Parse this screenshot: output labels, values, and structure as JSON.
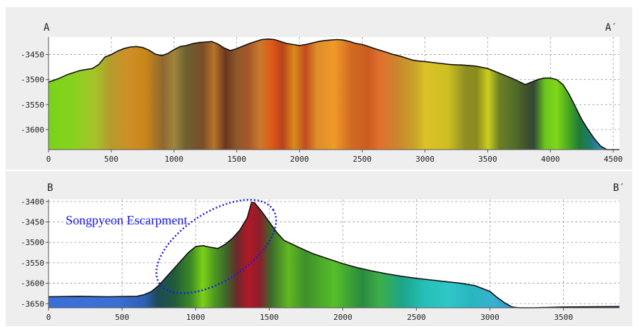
{
  "chart_data": [
    {
      "type": "area",
      "start_label": "A",
      "end_label": "A′",
      "xlim": [
        0,
        4550
      ],
      "ylim": [
        -3640,
        -3415
      ],
      "x_ticks": [
        0,
        500,
        1000,
        1500,
        2000,
        2500,
        3000,
        3500,
        4000,
        4500
      ],
      "y_ticks": [
        -3450,
        -3500,
        -3550,
        -3600
      ],
      "x": [
        0,
        80,
        150,
        250,
        300,
        350,
        400,
        450,
        500,
        550,
        600,
        650,
        700,
        750,
        800,
        850,
        900,
        950,
        1000,
        1050,
        1100,
        1150,
        1200,
        1250,
        1300,
        1350,
        1400,
        1450,
        1500,
        1550,
        1600,
        1650,
        1700,
        1750,
        1800,
        1850,
        1900,
        1950,
        2000,
        2050,
        2100,
        2150,
        2200,
        2250,
        2300,
        2350,
        2400,
        2450,
        2500,
        2550,
        2600,
        2650,
        2700,
        2750,
        2800,
        2850,
        2900,
        2950,
        3000,
        3100,
        3200,
        3300,
        3400,
        3500,
        3600,
        3700,
        3800,
        3900,
        3950,
        4000,
        4050,
        4100,
        4150,
        4200,
        4250,
        4300,
        4350,
        4400,
        4450,
        4500,
        4550
      ],
      "y": [
        -3505,
        -3498,
        -3490,
        -3482,
        -3480,
        -3478,
        -3470,
        -3455,
        -3450,
        -3443,
        -3438,
        -3435,
        -3434,
        -3436,
        -3441,
        -3449,
        -3452,
        -3448,
        -3440,
        -3434,
        -3432,
        -3428,
        -3426,
        -3425,
        -3424,
        -3429,
        -3437,
        -3442,
        -3438,
        -3433,
        -3428,
        -3424,
        -3420,
        -3419,
        -3420,
        -3424,
        -3428,
        -3430,
        -3432,
        -3430,
        -3427,
        -3424,
        -3422,
        -3421,
        -3420,
        -3421,
        -3424,
        -3428,
        -3430,
        -3434,
        -3438,
        -3442,
        -3446,
        -3450,
        -3453,
        -3457,
        -3461,
        -3463,
        -3464,
        -3467,
        -3470,
        -3471,
        -3473,
        -3478,
        -3488,
        -3498,
        -3510,
        -3500,
        -3497,
        -3497,
        -3500,
        -3510,
        -3530,
        -3555,
        -3580,
        -3600,
        -3618,
        -3633,
        -3645,
        -3655,
        -3660
      ]
    },
    {
      "type": "area",
      "start_label": "B",
      "end_label": "B′",
      "xlim": [
        0,
        3880
      ],
      "ylim": [
        -3660,
        -3395
      ],
      "x_ticks": [
        0,
        500,
        1000,
        1500,
        2000,
        2500,
        3000,
        3500
      ],
      "y_ticks": [
        -3400,
        -3450,
        -3500,
        -3550,
        -3600,
        -3650
      ],
      "x": [
        0,
        200,
        400,
        600,
        650,
        700,
        750,
        800,
        850,
        900,
        950,
        1000,
        1050,
        1100,
        1150,
        1200,
        1250,
        1300,
        1350,
        1380,
        1400,
        1450,
        1500,
        1550,
        1600,
        1700,
        1800,
        1900,
        2000,
        2100,
        2200,
        2300,
        2400,
        2500,
        2600,
        2700,
        2800,
        2900,
        3000,
        3050,
        3100,
        3150,
        3200,
        3300,
        3500,
        3880
      ],
      "y": [
        -3633,
        -3632,
        -3633,
        -3632,
        -3628,
        -3620,
        -3605,
        -3585,
        -3565,
        -3545,
        -3525,
        -3510,
        -3508,
        -3512,
        -3515,
        -3505,
        -3490,
        -3470,
        -3440,
        -3402,
        -3403,
        -3425,
        -3450,
        -3475,
        -3495,
        -3512,
        -3528,
        -3540,
        -3552,
        -3562,
        -3570,
        -3577,
        -3583,
        -3588,
        -3592,
        -3596,
        -3600,
        -3606,
        -3620,
        -3635,
        -3648,
        -3658,
        -3660,
        -3660,
        -3658,
        -3657
      ]
    }
  ],
  "annotation": {
    "text": "Songpyeon Escarpment"
  }
}
